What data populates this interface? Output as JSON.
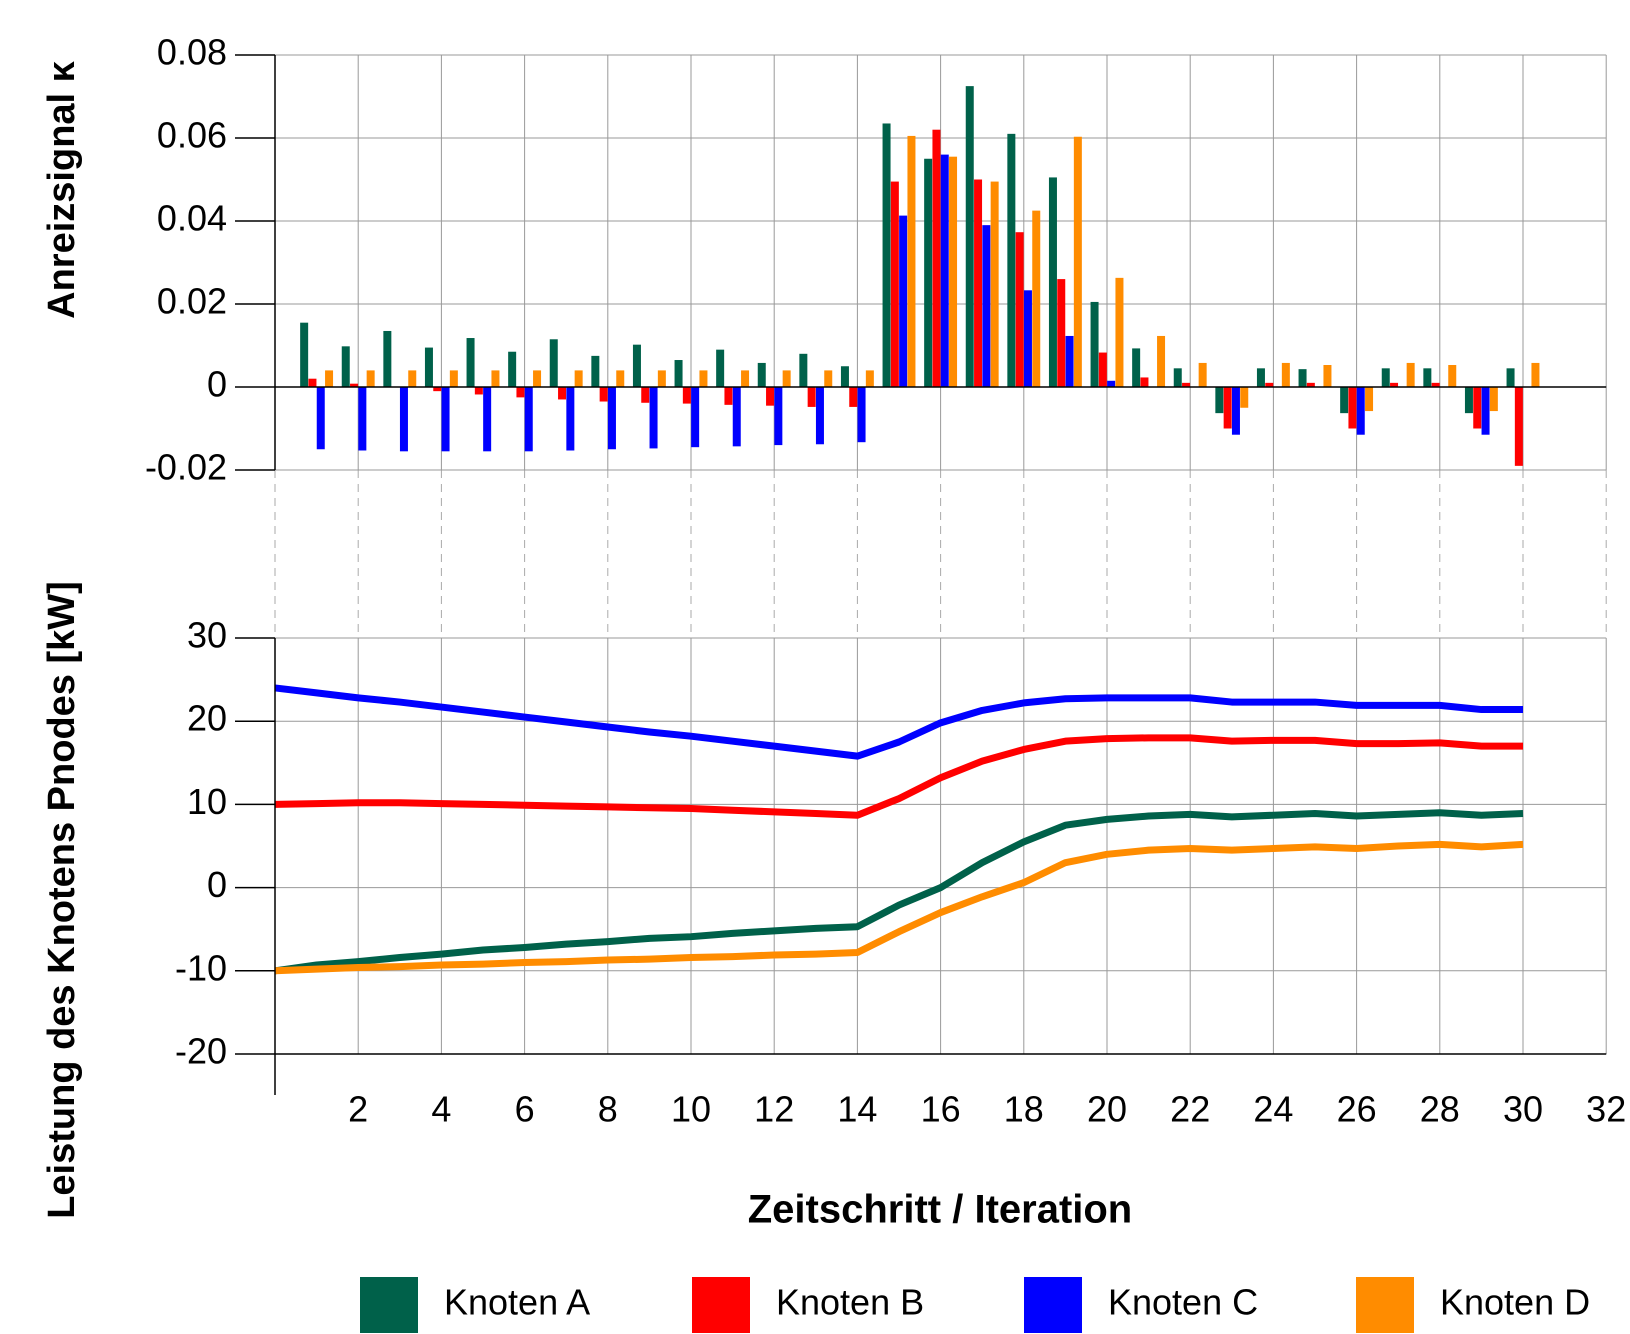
{
  "chart_data": [
    {
      "type": "bar",
      "ylabel": "Anreizsignal κ",
      "x": [
        1,
        2,
        3,
        4,
        5,
        6,
        7,
        8,
        9,
        10,
        11,
        12,
        13,
        14,
        15,
        16,
        17,
        18,
        19,
        20,
        21,
        22,
        23,
        24,
        25,
        26,
        27,
        28,
        29,
        30
      ],
      "ylim": [
        -0.02,
        0.08
      ],
      "yticks": [
        -0.02,
        0,
        0.02,
        0.04,
        0.06,
        0.08
      ],
      "grid": true,
      "series": [
        {
          "color": "#00614a",
          "values": [
            0.0155,
            0.0098,
            0.0135,
            0.0095,
            0.0118,
            0.0085,
            0.0115,
            0.0075,
            0.0102,
            0.0065,
            0.009,
            0.0058,
            0.008,
            0.005,
            0.0635,
            0.055,
            0.0725,
            0.061,
            0.0505,
            0.0205,
            0.0093,
            0.0045,
            -0.0063,
            0.0045,
            0.0043,
            -0.0063,
            0.0045,
            0.0045,
            -0.0063,
            0.0045
          ]
        },
        {
          "color": "#ff0000",
          "values": [
            0.002,
            0.0008,
            0,
            -0.001,
            -0.0018,
            -0.0025,
            -0.003,
            -0.0035,
            -0.0038,
            -0.004,
            -0.0043,
            -0.0045,
            -0.0048,
            -0.0048,
            0.0495,
            0.062,
            0.05,
            0.0373,
            0.026,
            0.0083,
            0.0023,
            0.001,
            -0.01,
            0.001,
            0.001,
            -0.01,
            0.001,
            0.001,
            -0.01,
            -0.019
          ]
        },
        {
          "color": "#0000ff",
          "values": [
            -0.015,
            -0.0153,
            -0.0155,
            -0.0155,
            -0.0155,
            -0.0155,
            -0.0153,
            -0.015,
            -0.0148,
            -0.0145,
            -0.0143,
            -0.014,
            -0.0138,
            -0.0133,
            0.0413,
            0.056,
            0.039,
            0.0233,
            0.0123,
            0.0015,
            0,
            0,
            -0.0115,
            0,
            0,
            -0.0115,
            0,
            0,
            -0.0115,
            0
          ]
        },
        {
          "color": "#ff8c00",
          "values": [
            0.004,
            0.004,
            0.004,
            0.004,
            0.004,
            0.004,
            0.004,
            0.004,
            0.004,
            0.004,
            0.004,
            0.004,
            0.004,
            0.004,
            0.0605,
            0.0555,
            0.0495,
            0.0425,
            0.0603,
            0.0263,
            0.0123,
            0.0058,
            -0.005,
            0.0058,
            0.0053,
            -0.0058,
            0.0058,
            0.0053,
            -0.0058,
            0.0058
          ]
        }
      ]
    },
    {
      "type": "line",
      "xlabel": "Zeitschritt / Iteration",
      "ylabel": "Leistung des Knotens Pnodes [kW]",
      "x": [
        0,
        1,
        2,
        3,
        4,
        5,
        6,
        7,
        8,
        9,
        10,
        11,
        12,
        13,
        14,
        15,
        16,
        17,
        18,
        19,
        20,
        21,
        22,
        23,
        24,
        25,
        26,
        27,
        28,
        29,
        30
      ],
      "xlim": [
        0,
        32
      ],
      "xticks": [
        2,
        4,
        6,
        8,
        10,
        12,
        14,
        16,
        18,
        20,
        22,
        24,
        26,
        28,
        30,
        32
      ],
      "ylim": [
        -20,
        30
      ],
      "yticks": [
        -20,
        -10,
        0,
        10,
        20,
        30
      ],
      "grid": true,
      "series": [
        {
          "name": "Knoten A",
          "color": "#00614a",
          "values": [
            -10,
            -9.3,
            -8.9,
            -8.4,
            -8,
            -7.5,
            -7.2,
            -6.8,
            -6.5,
            -6.1,
            -5.9,
            -5.5,
            -5.2,
            -4.9,
            -4.7,
            -2.1,
            0,
            3,
            5.5,
            7.5,
            8.2,
            8.6,
            8.8,
            8.5,
            8.7,
            8.9,
            8.6,
            8.8,
            9,
            8.7,
            8.9
          ]
        },
        {
          "name": "Knoten B",
          "color": "#ff0000",
          "values": [
            10,
            10.1,
            10.2,
            10.2,
            10.1,
            10,
            9.9,
            9.8,
            9.7,
            9.6,
            9.5,
            9.3,
            9.1,
            8.9,
            8.7,
            10.7,
            13.2,
            15.2,
            16.6,
            17.6,
            17.9,
            18,
            18,
            17.6,
            17.7,
            17.7,
            17.3,
            17.3,
            17.4,
            17,
            17
          ]
        },
        {
          "name": "Knoten C",
          "color": "#0000ff",
          "values": [
            24,
            23.4,
            22.8,
            22.3,
            21.7,
            21.1,
            20.5,
            19.9,
            19.3,
            18.7,
            18.2,
            17.6,
            17,
            16.4,
            15.8,
            17.5,
            19.8,
            21.3,
            22.2,
            22.7,
            22.8,
            22.8,
            22.8,
            22.3,
            22.3,
            22.3,
            21.9,
            21.9,
            21.9,
            21.4,
            21.4
          ]
        },
        {
          "name": "Knoten D",
          "color": "#ff8c00",
          "values": [
            -10,
            -9.8,
            -9.6,
            -9.5,
            -9.3,
            -9.2,
            -9,
            -8.9,
            -8.7,
            -8.6,
            -8.4,
            -8.3,
            -8.1,
            -8,
            -7.8,
            -5.3,
            -3,
            -1.1,
            0.6,
            3,
            4,
            4.5,
            4.7,
            4.5,
            4.7,
            4.9,
            4.7,
            5,
            5.2,
            4.9,
            5.2
          ]
        }
      ]
    }
  ]
}
